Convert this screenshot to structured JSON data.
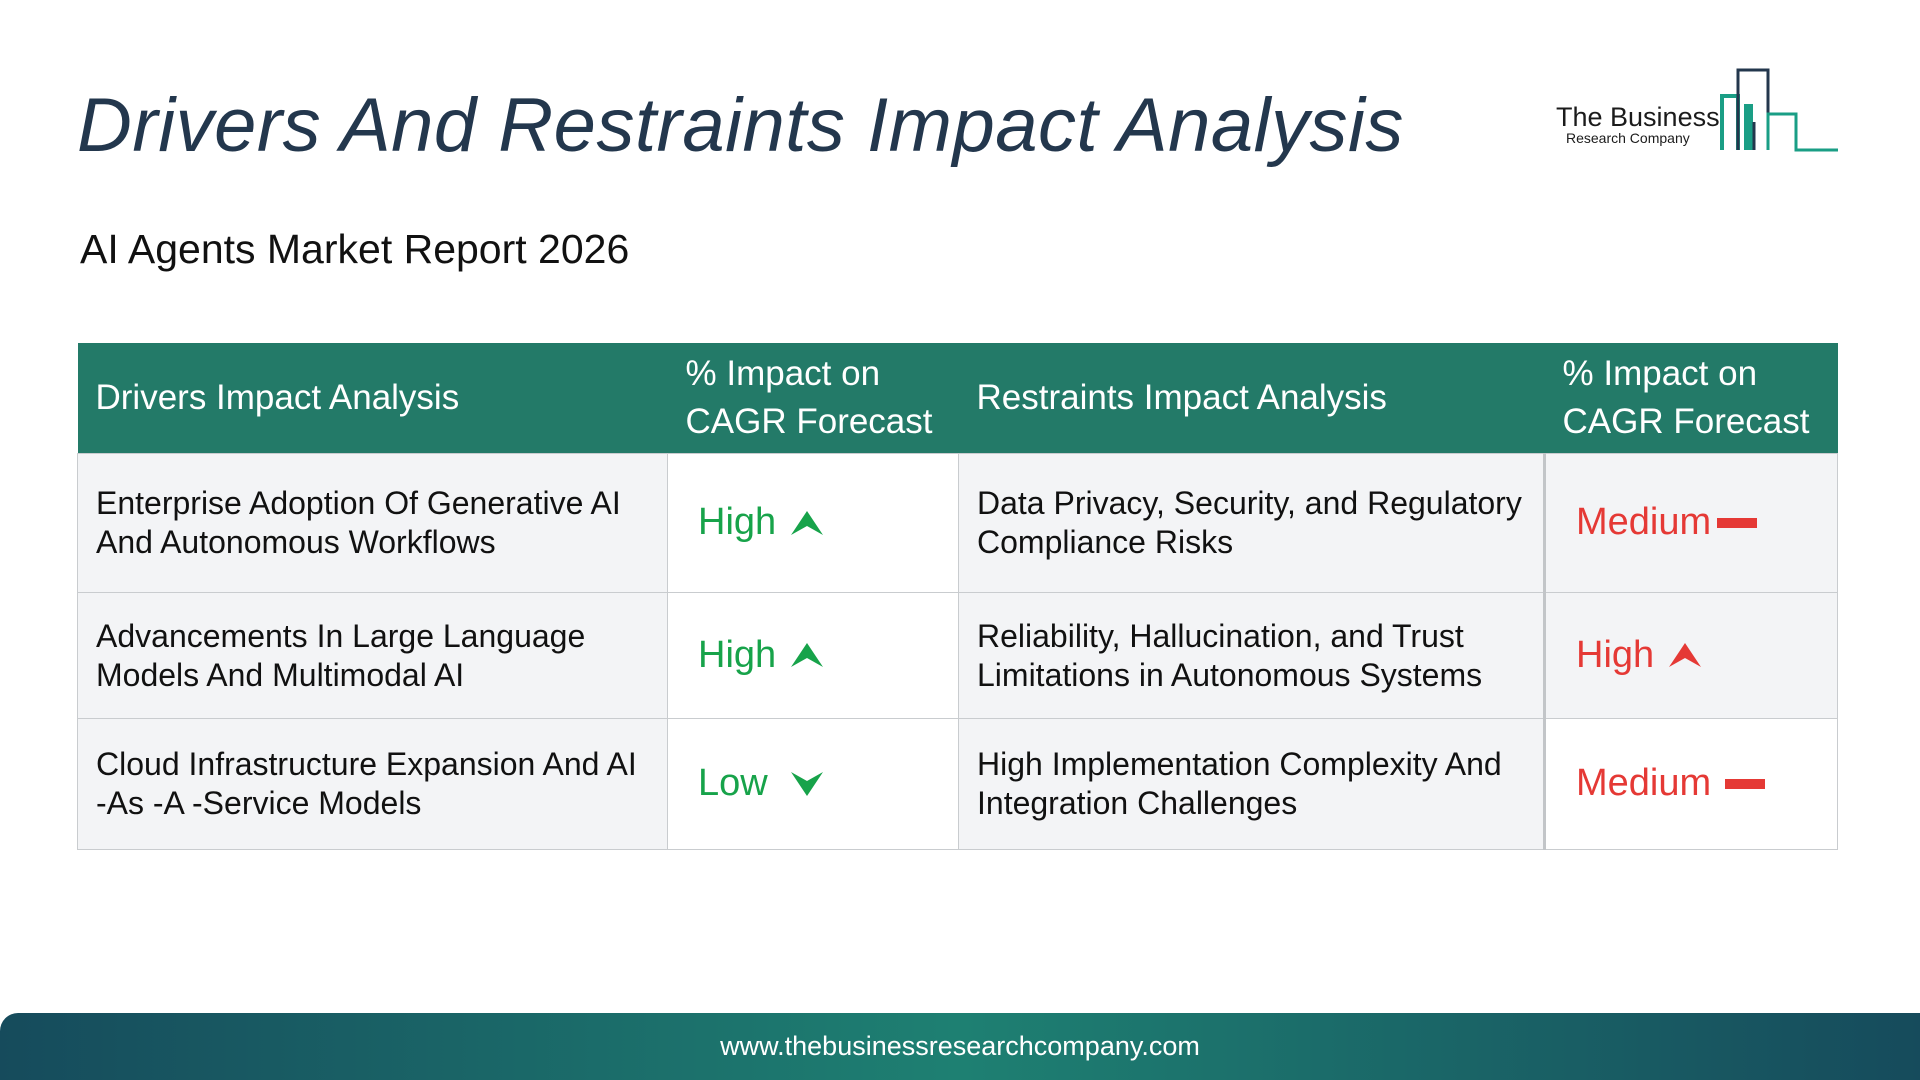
{
  "page": {
    "title": "Drivers And Restraints Impact Analysis",
    "subtitle": "AI Agents Market Report 2026"
  },
  "logo": {
    "line1": "The Business",
    "line2": "Research Company",
    "accent_color": "#1a9e85"
  },
  "table": {
    "headers": {
      "drivers": "Drivers Impact Analysis",
      "drivers_impact": "% Impact on CAGR Forecast",
      "restraints": "Restraints Impact Analysis",
      "restraints_impact": "% Impact on CAGR Forecast"
    },
    "rows": [
      {
        "driver": "Enterprise Adoption Of Generative AI And Autonomous Workflows",
        "driver_impact": "High",
        "driver_icon": "arrow-up-icon",
        "restraint": "Data Privacy, Security, and Regulatory Compliance Risks",
        "restraint_impact": "Medium",
        "restraint_icon": "dash-icon"
      },
      {
        "driver": "Advancements In Large Language Models And Multimodal AI",
        "driver_impact": "High",
        "driver_icon": "arrow-up-icon",
        "restraint": "Reliability, Hallucination, and Trust Limitations in Autonomous Systems",
        "restraint_impact": "High",
        "restraint_icon": "arrow-up-icon"
      },
      {
        "driver": "Cloud Infrastructure Expansion And AI -As -A -Service Models",
        "driver_impact": "Low",
        "driver_icon": "arrow-down-icon",
        "restraint": "High Implementation Complexity And Integration Challenges",
        "restraint_impact": "Medium",
        "restraint_icon": "dash-icon"
      }
    ]
  },
  "colors": {
    "header_bg": "#237a68",
    "driver_level": "#17a34a",
    "restraint_level": "#e53935",
    "title": "#23374d"
  },
  "footer": {
    "url": "www.thebusinessresearchcompany.com"
  }
}
